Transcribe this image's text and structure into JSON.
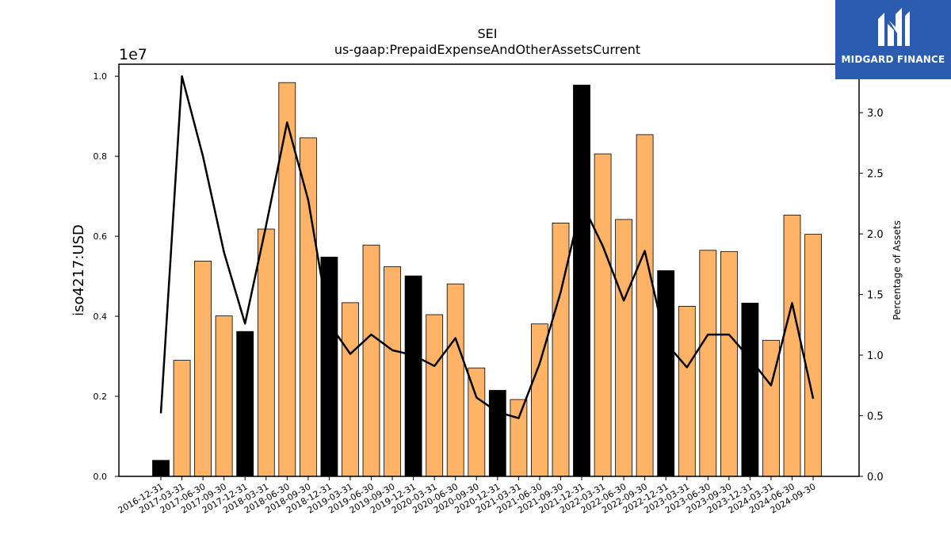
{
  "chart_data": {
    "type": "bar+line",
    "title": "SEI",
    "subtitle": "us-gaap:PrepaidExpenseAndOtherAssetsCurrent",
    "ylabel": "iso4217:USD",
    "y2label": "Percentage of Assets",
    "y_offset_label": "1e7",
    "ylim": [
      0,
      10300000
    ],
    "y2lim": [
      0,
      3.4
    ],
    "yticks": [
      0.0,
      0.2,
      0.4,
      0.6,
      0.8,
      1.0
    ],
    "y2ticks": [
      0.0,
      0.5,
      1.0,
      1.5,
      2.0,
      2.5,
      3.0
    ],
    "categories": [
      "2016-12-31",
      "2017-03-31",
      "2017-06-30",
      "2017-09-30",
      "2017-12-31",
      "2018-03-31",
      "2018-06-30",
      "2018-09-30",
      "2018-12-31",
      "2019-03-31",
      "2019-06-30",
      "2019-09-30",
      "2019-12-31",
      "2020-03-31",
      "2020-06-30",
      "2020-09-30",
      "2020-12-31",
      "2021-03-31",
      "2021-06-30",
      "2021-09-30",
      "2021-12-31",
      "2022-03-31",
      "2022-06-30",
      "2022-09-30",
      "2022-12-31",
      "2023-03-31",
      "2023-06-30",
      "2023-09-30",
      "2023-12-31",
      "2024-03-31",
      "2024-06-30",
      "2024-09-30"
    ],
    "values": [
      400000,
      2900000,
      5380000,
      4010000,
      3620000,
      6180000,
      9840000,
      8460000,
      5480000,
      4340000,
      5780000,
      5240000,
      5010000,
      4040000,
      4810000,
      2710000,
      2150000,
      1920000,
      3810000,
      6330000,
      9780000,
      8060000,
      6420000,
      8540000,
      5140000,
      4250000,
      5650000,
      5620000,
      4330000,
      3400000,
      6530000,
      6050000
    ],
    "bar_kind": [
      "annual",
      "quarter",
      "quarter",
      "quarter",
      "annual",
      "quarter",
      "quarter",
      "quarter",
      "annual",
      "quarter",
      "quarter",
      "quarter",
      "annual",
      "quarter",
      "quarter",
      "quarter",
      "annual",
      "quarter",
      "quarter",
      "quarter",
      "annual",
      "quarter",
      "quarter",
      "quarter",
      "annual",
      "quarter",
      "quarter",
      "quarter",
      "annual",
      "quarter",
      "quarter",
      "quarter"
    ],
    "pct_of_assets": [
      0.52,
      3.3,
      2.64,
      1.85,
      1.26,
      2.07,
      2.92,
      2.28,
      1.26,
      1.01,
      1.17,
      1.04,
      1.0,
      0.91,
      1.14,
      0.65,
      0.53,
      0.48,
      0.93,
      1.52,
      2.26,
      1.9,
      1.45,
      1.86,
      1.1,
      0.9,
      1.17,
      1.17,
      0.97,
      0.75,
      1.43,
      0.64
    ],
    "colors": {
      "annual": "#000000",
      "quarter": "#ffb366",
      "line": "#000000"
    }
  },
  "logo": {
    "text": "MIDGARD FINANCE"
  }
}
